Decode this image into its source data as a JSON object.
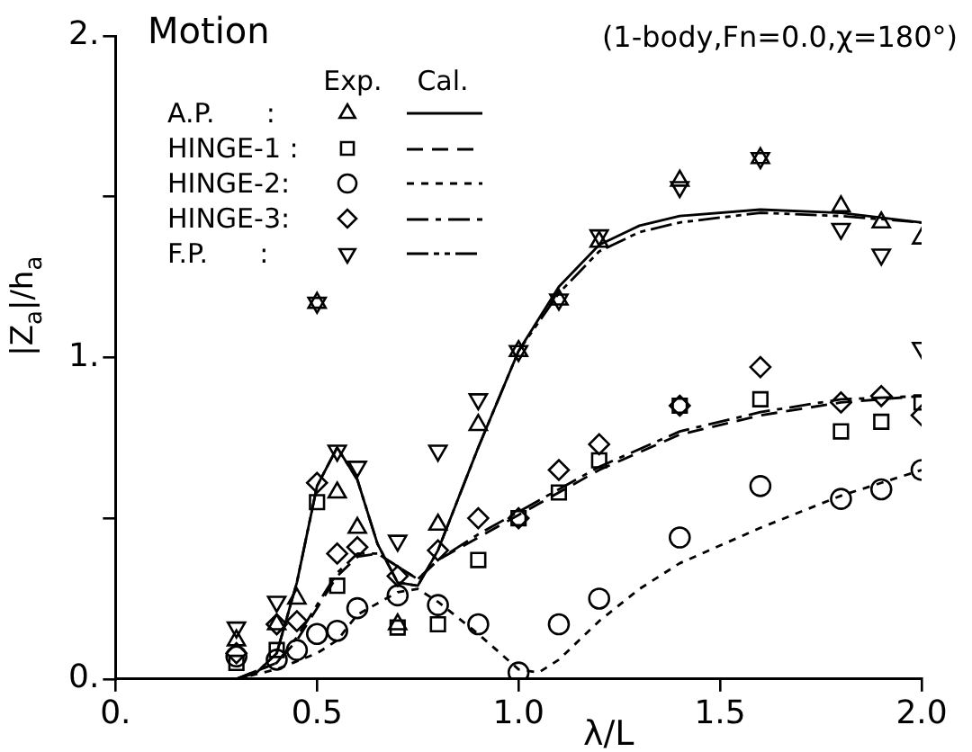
{
  "chart_data": {
    "type": "scatter",
    "title": "Motion",
    "subtitle": "(1-body,Fn=0.0,χ=180°)",
    "xlabel": "λ/L",
    "ylabel": "|Z$_{a}$|/h$_{a}$",
    "annotations": [
      "Exp.",
      "Cal."
    ],
    "legend": "top left",
    "grid": false,
    "xlim": [
      0,
      2
    ],
    "ylim": [
      0,
      2
    ],
    "xticks": [
      {
        "value": 0,
        "label": "0."
      },
      0.5,
      {
        "value": 1,
        "label": "1.0"
      },
      1.5,
      {
        "value": 2,
        "label": "2.0"
      }
    ],
    "yticks": [
      {
        "value": 0,
        "label": "0."
      },
      {
        "value": 0.5,
        "label": null
      },
      {
        "value": 1,
        "label": "1."
      },
      {
        "value": 1.5,
        "label": null
      },
      {
        "value": 2,
        "label": "2."
      }
    ],
    "series": [
      {
        "name": "A.P.      :",
        "marker": "triangle",
        "color": "#000000",
        "x": [
          0.3,
          0.4,
          0.45,
          0.5,
          0.55,
          0.6,
          0.7,
          0.8,
          0.9,
          1.0,
          1.1,
          1.2,
          1.4,
          1.6,
          1.8,
          1.9,
          2.0
        ],
        "values": [
          0.12,
          0.17,
          0.25,
          1.17,
          0.58,
          0.47,
          0.17,
          0.48,
          0.79,
          1.02,
          1.18,
          1.36,
          1.55,
          1.62,
          1.47,
          1.42,
          1.37
        ]
      },
      {
        "name": "HINGE-1 :",
        "marker": "square",
        "color": "#000000",
        "x": [
          0.3,
          0.4,
          0.5,
          0.55,
          0.7,
          0.8,
          0.9,
          1.0,
          1.1,
          1.2,
          1.4,
          1.6,
          1.8,
          1.9,
          2.0
        ],
        "values": [
          0.05,
          0.09,
          0.55,
          0.29,
          0.16,
          0.17,
          0.37,
          0.5,
          0.58,
          0.68,
          0.85,
          0.87,
          0.77,
          0.8,
          0.86
        ]
      },
      {
        "name": "HINGE-2:",
        "marker": "circle",
        "color": "#000000",
        "x": [
          0.3,
          0.4,
          0.45,
          0.5,
          0.55,
          0.6,
          0.7,
          0.8,
          0.9,
          1.0,
          1.1,
          1.2,
          1.4,
          1.6,
          1.8,
          1.9,
          2.0
        ],
        "values": [
          0.07,
          0.06,
          0.09,
          0.14,
          0.15,
          0.22,
          0.26,
          0.23,
          0.17,
          0.02,
          0.17,
          0.25,
          0.44,
          0.6,
          0.56,
          0.59,
          0.65
        ]
      },
      {
        "name": "HINGE-3:",
        "marker": "diamond",
        "color": "#000000",
        "x": [
          0.3,
          0.4,
          0.45,
          0.5,
          0.55,
          0.6,
          0.7,
          0.8,
          0.9,
          1.0,
          1.1,
          1.2,
          1.4,
          1.6,
          1.8,
          1.9,
          2.0
        ],
        "values": [
          0.08,
          0.17,
          0.18,
          0.61,
          0.39,
          0.41,
          0.32,
          0.4,
          0.5,
          0.5,
          0.65,
          0.73,
          0.85,
          0.97,
          0.86,
          0.88,
          0.82
        ]
      },
      {
        "name": "F.P.      :",
        "marker": "triangle_down",
        "color": "#000000",
        "x": [
          0.3,
          0.4,
          0.5,
          0.55,
          0.6,
          0.7,
          0.8,
          0.9,
          1.0,
          1.1,
          1.2,
          1.4,
          1.6,
          1.8,
          1.9,
          2.0
        ],
        "values": [
          0.16,
          0.24,
          1.17,
          0.71,
          0.66,
          0.43,
          0.71,
          0.87,
          1.02,
          1.18,
          1.38,
          1.53,
          1.62,
          1.4,
          1.32,
          1.03
        ]
      },
      {
        "type": "line",
        "line_style": "solid",
        "color": "#000000",
        "x": [
          0.3,
          0.35,
          0.4,
          0.45,
          0.5,
          0.55,
          0.6,
          0.65,
          0.7,
          0.75,
          0.8,
          0.9,
          1.0,
          1.1,
          1.2,
          1.3,
          1.4,
          1.6,
          1.8,
          2.0
        ],
        "values": [
          0.0,
          0.02,
          0.08,
          0.3,
          0.6,
          0.72,
          0.62,
          0.42,
          0.3,
          0.29,
          0.4,
          0.72,
          1.02,
          1.22,
          1.35,
          1.41,
          1.44,
          1.46,
          1.45,
          1.42
        ]
      },
      {
        "type": "line",
        "line_style": "dashed",
        "color": "#000000",
        "x": [
          0.3,
          0.4,
          0.45,
          0.5,
          0.55,
          0.6,
          0.65,
          0.7,
          0.75,
          0.8,
          0.9,
          1.0,
          1.1,
          1.2,
          1.4,
          1.6,
          1.8,
          2.0
        ],
        "values": [
          0.0,
          0.05,
          0.12,
          0.22,
          0.32,
          0.38,
          0.39,
          0.35,
          0.31,
          0.37,
          0.44,
          0.51,
          0.58,
          0.65,
          0.76,
          0.82,
          0.86,
          0.88
        ]
      },
      {
        "type": "line",
        "line_style": "dotted",
        "color": "#000000",
        "x": [
          0.3,
          0.4,
          0.5,
          0.55,
          0.6,
          0.7,
          0.75,
          0.8,
          0.9,
          1.0,
          1.05,
          1.1,
          1.2,
          1.3,
          1.4,
          1.6,
          1.8,
          2.0
        ],
        "values": [
          0.0,
          0.03,
          0.08,
          0.12,
          0.2,
          0.27,
          0.28,
          0.24,
          0.14,
          0.03,
          0.02,
          0.06,
          0.18,
          0.28,
          0.36,
          0.47,
          0.57,
          0.65
        ]
      },
      {
        "type": "line",
        "line_style": "dashdot",
        "color": "#000000",
        "x": [
          0.3,
          0.4,
          0.45,
          0.5,
          0.55,
          0.6,
          0.65,
          0.7,
          0.75,
          0.8,
          0.9,
          1.0,
          1.1,
          1.2,
          1.4,
          1.6,
          1.8,
          2.0
        ],
        "values": [
          0.0,
          0.05,
          0.13,
          0.23,
          0.33,
          0.39,
          0.39,
          0.35,
          0.31,
          0.37,
          0.45,
          0.52,
          0.59,
          0.66,
          0.77,
          0.83,
          0.87,
          0.88
        ]
      },
      {
        "type": "line",
        "line_style": "dashdotdot",
        "color": "#000000",
        "x": [
          0.3,
          0.35,
          0.4,
          0.45,
          0.5,
          0.55,
          0.6,
          0.65,
          0.7,
          0.75,
          0.8,
          0.9,
          1.0,
          1.1,
          1.2,
          1.3,
          1.4,
          1.6,
          1.8,
          2.0
        ],
        "values": [
          0.0,
          0.02,
          0.08,
          0.3,
          0.6,
          0.72,
          0.62,
          0.42,
          0.3,
          0.29,
          0.4,
          0.72,
          1.02,
          1.2,
          1.33,
          1.39,
          1.42,
          1.45,
          1.44,
          1.42
        ]
      }
    ]
  }
}
